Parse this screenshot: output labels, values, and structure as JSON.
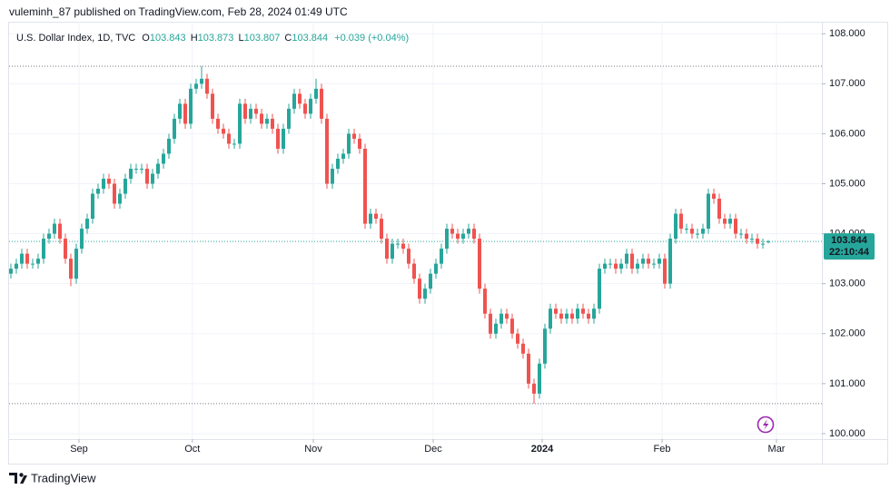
{
  "header": {
    "published": "vuleminh_87 published on TradingView.com, Feb 28, 2024 01:49 UTC"
  },
  "footer": {
    "brand": "TradingView"
  },
  "chart_data": {
    "type": "candlestick",
    "title": "U.S. Dollar Index, 1D, TVC",
    "legend": [
      {
        "key": "O",
        "value": "103.843"
      },
      {
        "key": "H",
        "value": "103.873"
      },
      {
        "key": "L",
        "value": "103.807"
      },
      {
        "key": "C",
        "value": "103.844"
      }
    ],
    "change": "+0.039 (+0.04%)",
    "countdown": "22:10:44",
    "up_color": "#26a69a",
    "down_color": "#ef5350",
    "grid": true,
    "xlim": [
      -0.33,
      148.83
    ],
    "ylim": [
      99.89,
      108.24
    ],
    "xticks": [
      {
        "value": 12.5,
        "label": "Sep"
      },
      {
        "value": 33.3,
        "label": "Oct"
      },
      {
        "value": 55.5,
        "label": "Nov"
      },
      {
        "value": 77.5,
        "label": "Dec"
      },
      {
        "value": 97.5,
        "label": "2024"
      },
      {
        "value": 119.5,
        "label": "Feb"
      },
      {
        "value": 140.5,
        "label": "Mar"
      }
    ],
    "yticks": [
      {
        "value": 100,
        "label": "100.000"
      },
      {
        "value": 101,
        "label": "101.000"
      },
      {
        "value": 102,
        "label": "102.000"
      },
      {
        "value": 103,
        "label": "103.000"
      },
      {
        "value": 104,
        "label": "104.000"
      },
      {
        "value": 105,
        "label": "105.000"
      },
      {
        "value": 106,
        "label": "106.000"
      },
      {
        "value": 107,
        "label": "107.000"
      },
      {
        "value": 108,
        "label": "108.000"
      }
    ],
    "open": [
      103.2,
      103.3,
      103.4,
      103.6,
      103.4,
      103.4,
      103.5,
      103.9,
      104.0,
      104.2,
      103.9,
      103.5,
      103.1,
      103.7,
      104.1,
      104.3,
      104.8,
      104.9,
      105.1,
      105.0,
      104.6,
      104.8,
      105.1,
      105.3,
      105.3,
      105.3,
      105.0,
      105.2,
      105.4,
      105.6,
      105.9,
      106.3,
      106.6,
      106.2,
      106.9,
      107.0,
      107.1,
      106.8,
      106.3,
      106.1,
      106.0,
      105.8,
      105.8,
      106.6,
      106.3,
      106.5,
      106.4,
      106.2,
      106.3,
      106.1,
      105.7,
      106.1,
      106.5,
      106.8,
      106.6,
      106.4,
      106.7,
      106.9,
      106.3,
      105.0,
      105.3,
      105.5,
      105.6,
      106.0,
      105.9,
      105.7,
      104.2,
      104.4,
      104.3,
      103.9,
      103.5,
      103.8,
      103.8,
      103.7,
      103.4,
      103.1,
      102.7,
      102.9,
      103.2,
      103.4,
      103.7,
      104.1,
      104.0,
      103.9,
      104.0,
      104.1,
      103.9,
      102.9,
      102.4,
      102.0,
      102.2,
      102.4,
      102.3,
      102.0,
      101.8,
      101.6,
      101.0,
      100.8,
      101.4,
      102.1,
      102.5,
      102.4,
      102.3,
      102.4,
      102.3,
      102.5,
      102.4,
      102.3,
      102.5,
      103.3,
      103.4,
      103.4,
      103.3,
      103.4,
      103.6,
      103.3,
      103.4,
      103.5,
      103.4,
      103.4,
      103.5,
      103.0,
      103.9,
      104.4,
      104.1,
      104.1,
      104.0,
      104.0,
      104.1,
      104.8,
      104.7,
      104.3,
      104.2,
      104.3,
      104.0,
      104.0,
      103.9,
      103.9,
      103.8,
      103.843
    ],
    "high": [
      103.4,
      103.5,
      103.7,
      103.7,
      103.5,
      103.6,
      104.0,
      104.1,
      104.3,
      104.3,
      104.0,
      103.6,
      103.8,
      104.2,
      104.4,
      104.9,
      105.0,
      105.2,
      105.2,
      105.1,
      104.9,
      105.2,
      105.4,
      105.4,
      105.4,
      105.4,
      105.3,
      105.5,
      105.7,
      106.0,
      106.4,
      106.7,
      106.7,
      107.0,
      107.1,
      107.35,
      107.2,
      106.9,
      106.4,
      106.2,
      106.1,
      105.9,
      106.7,
      106.7,
      106.6,
      106.6,
      106.5,
      106.4,
      106.4,
      106.2,
      106.2,
      106.6,
      106.9,
      106.9,
      106.7,
      106.8,
      107.1,
      107.0,
      106.4,
      105.4,
      105.6,
      105.7,
      106.1,
      106.1,
      106.0,
      105.8,
      104.5,
      104.5,
      104.4,
      104.0,
      103.9,
      103.9,
      103.9,
      103.8,
      103.5,
      103.2,
      103.0,
      103.3,
      103.5,
      103.8,
      104.2,
      104.2,
      104.1,
      104.1,
      104.2,
      104.2,
      104.0,
      103.0,
      102.5,
      102.3,
      102.5,
      102.5,
      102.4,
      102.1,
      101.9,
      101.7,
      101.1,
      101.5,
      102.2,
      102.6,
      102.6,
      102.5,
      102.5,
      102.5,
      102.6,
      102.6,
      102.5,
      102.6,
      103.4,
      103.5,
      103.5,
      103.5,
      103.5,
      103.7,
      103.7,
      103.5,
      103.6,
      103.6,
      103.5,
      103.6,
      103.6,
      104.0,
      104.5,
      104.5,
      104.2,
      104.2,
      104.1,
      104.2,
      104.9,
      104.9,
      104.8,
      104.4,
      104.4,
      104.4,
      104.1,
      104.1,
      104.0,
      104.0,
      103.9,
      103.873
    ],
    "low": [
      103.1,
      103.2,
      103.3,
      103.3,
      103.3,
      103.3,
      103.4,
      103.8,
      103.9,
      103.8,
      103.4,
      102.95,
      103.0,
      103.6,
      104.0,
      104.2,
      104.7,
      104.8,
      104.9,
      104.5,
      104.5,
      104.7,
      105.0,
      105.2,
      105.2,
      104.9,
      104.9,
      105.1,
      105.3,
      105.5,
      105.8,
      106.2,
      106.1,
      106.1,
      106.8,
      106.9,
      106.7,
      106.2,
      106.0,
      105.9,
      105.7,
      105.7,
      105.7,
      106.2,
      106.2,
      106.3,
      106.1,
      106.1,
      106.0,
      105.6,
      105.6,
      106.0,
      106.4,
      106.5,
      106.3,
      106.3,
      106.6,
      106.2,
      104.9,
      104.9,
      105.2,
      105.4,
      105.5,
      105.8,
      105.6,
      104.1,
      104.1,
      104.2,
      103.8,
      103.4,
      103.4,
      103.7,
      103.6,
      103.3,
      103.0,
      102.6,
      102.6,
      102.8,
      103.1,
      103.3,
      103.6,
      103.9,
      103.8,
      103.8,
      103.9,
      103.8,
      102.8,
      102.3,
      101.9,
      101.9,
      102.1,
      102.2,
      101.9,
      101.7,
      101.5,
      100.9,
      100.6,
      100.7,
      101.3,
      102.0,
      102.3,
      102.2,
      102.2,
      102.2,
      102.2,
      102.3,
      102.2,
      102.2,
      102.4,
      103.2,
      103.3,
      103.2,
      103.2,
      103.3,
      103.2,
      103.2,
      103.3,
      103.3,
      103.3,
      103.3,
      102.9,
      102.9,
      103.8,
      104.0,
      104.0,
      103.9,
      103.9,
      103.9,
      104.0,
      104.6,
      104.2,
      104.1,
      104.1,
      103.9,
      103.9,
      103.8,
      103.8,
      103.7,
      103.7,
      103.807
    ],
    "close": [
      103.3,
      103.4,
      103.6,
      103.4,
      103.4,
      103.5,
      103.9,
      104.0,
      104.2,
      103.9,
      103.5,
      103.1,
      103.7,
      104.1,
      104.3,
      104.8,
      104.9,
      105.1,
      105.0,
      104.6,
      104.8,
      105.1,
      105.3,
      105.3,
      105.3,
      105.0,
      105.2,
      105.4,
      105.6,
      105.9,
      106.3,
      106.6,
      106.2,
      106.9,
      107.0,
      107.1,
      106.8,
      106.3,
      106.1,
      106.0,
      105.8,
      105.8,
      106.6,
      106.3,
      106.5,
      106.4,
      106.2,
      106.3,
      106.1,
      105.7,
      106.1,
      106.5,
      106.8,
      106.6,
      106.4,
      106.7,
      106.9,
      106.3,
      105.0,
      105.3,
      105.5,
      105.6,
      106.0,
      105.9,
      105.7,
      104.2,
      104.4,
      104.3,
      103.9,
      103.5,
      103.8,
      103.8,
      103.7,
      103.4,
      103.1,
      102.7,
      102.9,
      103.2,
      103.4,
      103.7,
      104.1,
      104.0,
      103.9,
      104.0,
      104.1,
      103.9,
      102.9,
      102.4,
      102.0,
      102.2,
      102.4,
      102.3,
      102.0,
      101.8,
      101.6,
      101.0,
      100.8,
      101.4,
      102.1,
      102.5,
      102.4,
      102.3,
      102.4,
      102.3,
      102.5,
      102.4,
      102.3,
      102.5,
      103.3,
      103.4,
      103.4,
      103.3,
      103.4,
      103.6,
      103.3,
      103.4,
      103.5,
      103.4,
      103.4,
      103.5,
      103.0,
      103.9,
      104.4,
      104.1,
      104.1,
      104.0,
      104.0,
      104.1,
      104.8,
      104.7,
      104.3,
      104.2,
      104.3,
      104.0,
      104.0,
      103.9,
      103.9,
      103.8,
      103.8,
      103.844
    ]
  }
}
